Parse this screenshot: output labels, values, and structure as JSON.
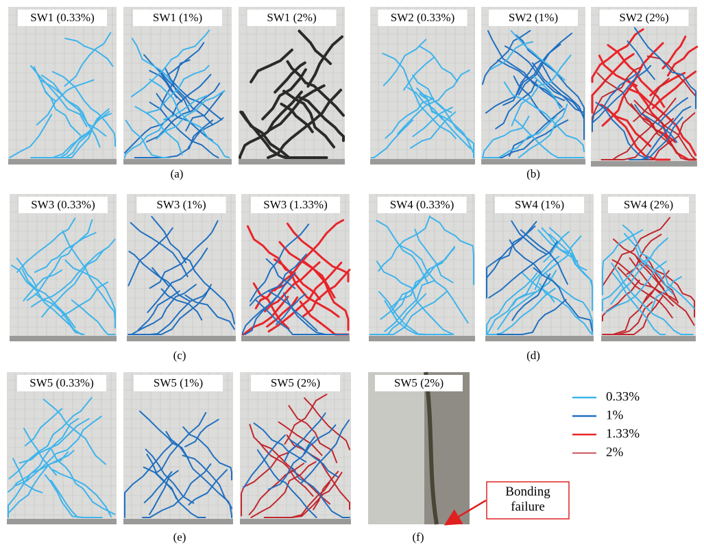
{
  "panels": [
    {
      "caption": "(a)",
      "photos": [
        {
          "label": "SW1 (0.33%)"
        },
        {
          "label": "SW1 (1%)"
        },
        {
          "label": "SW1 (2%)"
        }
      ]
    },
    {
      "caption": "(b)",
      "photos": [
        {
          "label": "SW2 (0.33%)"
        },
        {
          "label": "SW2 (1%)"
        },
        {
          "label": "SW2 (2%)"
        }
      ]
    },
    {
      "caption": "(c)",
      "photos": [
        {
          "label": "SW3 (0.33%)"
        },
        {
          "label": "SW3 (1%)"
        },
        {
          "label": "SW3 (1.33%)"
        }
      ]
    },
    {
      "caption": "(d)",
      "photos": [
        {
          "label": "SW4 (0.33%)"
        },
        {
          "label": "SW4 (1%)"
        },
        {
          "label": "SW4 (2%)"
        }
      ]
    },
    {
      "caption": "(e)",
      "photos": [
        {
          "label": "SW5 (0.33%)"
        },
        {
          "label": "SW5 (1%)"
        },
        {
          "label": "SW5 (2%)"
        }
      ]
    },
    {
      "caption": "(f)",
      "photos": [
        {
          "label": "SW5 (2%)"
        }
      ]
    }
  ],
  "legend": [
    {
      "label": "0.33%",
      "color": "#3cb4ec"
    },
    {
      "label": "1%",
      "color": "#1f6fc0"
    },
    {
      "label": "1.33%",
      "color": "#e8252a"
    },
    {
      "label": "2%",
      "color": "#c0272d"
    }
  ],
  "annotation": "Bonding failure"
}
